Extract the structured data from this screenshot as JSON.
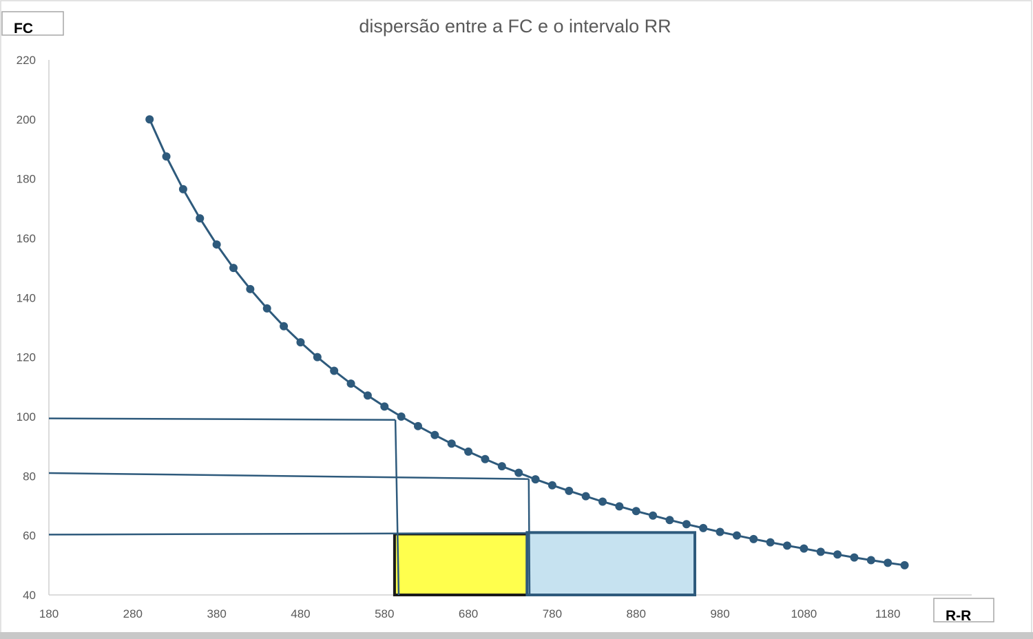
{
  "chart_data": {
    "type": "scatter",
    "title": "dispersão entre a FC e o intervalo RR",
    "xlabel": "R-R",
    "ylabel": "FC",
    "xlim": [
      180,
      1280
    ],
    "ylim": [
      40,
      220
    ],
    "x_ticks": [
      180,
      280,
      380,
      480,
      580,
      680,
      780,
      880,
      980,
      1080,
      1180
    ],
    "y_ticks": [
      40,
      60,
      80,
      100,
      120,
      140,
      160,
      180,
      200,
      220
    ],
    "grid": false,
    "legend": "none",
    "series": [
      {
        "x": [
          300,
          320,
          340,
          360,
          380,
          400,
          420,
          440,
          460,
          480,
          500,
          520,
          540,
          560,
          580,
          600,
          620,
          640,
          660,
          680,
          700,
          720,
          740,
          760,
          780,
          800,
          820,
          840,
          860,
          880,
          900,
          920,
          940,
          960,
          980,
          1000,
          1020,
          1040,
          1060,
          1080,
          1100,
          1120,
          1140,
          1160,
          1180,
          1200
        ],
        "y": [
          200,
          187.5,
          176.5,
          166.7,
          157.9,
          150,
          142.9,
          136.4,
          130.4,
          125,
          120,
          115.4,
          111.1,
          107.1,
          103.4,
          100,
          96.8,
          93.8,
          90.9,
          88.2,
          85.7,
          83.3,
          81.1,
          78.9,
          76.9,
          75,
          73.2,
          71.4,
          69.8,
          68.2,
          66.7,
          65.2,
          63.8,
          62.5,
          61.2,
          60,
          58.8,
          57.7,
          56.6,
          55.6,
          54.5,
          53.6,
          52.6,
          51.7,
          50.8,
          50
        ],
        "color": "#2e5a7c"
      }
    ],
    "annotations": {
      "line_color": "#2e5a7c",
      "guide_lines": [
        {
          "from": [
            180,
            99.4
          ],
          "to": [
            593,
            98.9
          ]
        },
        {
          "from": [
            593,
            98.9
          ],
          "to": [
            597,
            40
          ]
        },
        {
          "from": [
            180,
            81
          ],
          "to": [
            752,
            79
          ]
        },
        {
          "from": [
            752,
            79
          ],
          "to": [
            753,
            40
          ]
        },
        {
          "from": [
            180,
            60.3
          ],
          "to": [
            950,
            61
          ]
        }
      ],
      "rectangles": [
        {
          "x": [
            592,
            750
          ],
          "y": [
            40,
            60.5
          ],
          "fill": "#ffff4d",
          "stroke": "#1a1a1a"
        },
        {
          "x": [
            750,
            950
          ],
          "y": [
            40,
            61
          ],
          "fill": "#c6e2f0",
          "stroke": "#2e5a7c"
        }
      ]
    }
  }
}
